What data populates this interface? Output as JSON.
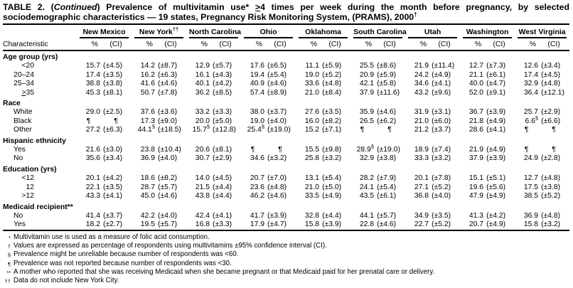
{
  "title": {
    "part1": "TABLE 2. (",
    "part2_italic": "Continued",
    "part3": ") Prevalence of multivitamin use* ",
    "part4_geq": ">",
    "part5": "4 times per week during the month before pregnancy, by selected",
    "line2": "sociodemographic characteristics — 19 states, Pregnancy Risk Monitoring System, (PRAMS), 2000",
    "line2_sup": "†"
  },
  "table": {
    "characteristic_label": "Characteristic",
    "subheaders": {
      "pct": "%",
      "ci": "(CI)"
    },
    "states": [
      {
        "name": "New Mexico",
        "sup": ""
      },
      {
        "name": "New York",
        "sup": "††"
      },
      {
        "name": "North Carolina",
        "sup": ""
      },
      {
        "name": "Ohio",
        "sup": ""
      },
      {
        "name": "Oklahoma",
        "sup": ""
      },
      {
        "name": "South Carolina",
        "sup": ""
      },
      {
        "name": "Utah",
        "sup": ""
      },
      {
        "name": "Washington",
        "sup": ""
      },
      {
        "name": "West Virginia",
        "sup": ""
      }
    ],
    "rows": [
      {
        "type": "section",
        "label": "Age group (yrs)"
      },
      {
        "type": "data",
        "label": "<20",
        "align": "num",
        "cells": [
          [
            "15.7",
            "(±4.5)"
          ],
          [
            "14.2",
            "(±8.7)"
          ],
          [
            "12.9",
            "(±5.7)"
          ],
          [
            "17.6",
            "(±6.5)"
          ],
          [
            "11.1",
            "(±5.9)"
          ],
          [
            "25.5",
            "(±8.6)"
          ],
          [
            "21.9",
            "(±11.4)"
          ],
          [
            "12.7",
            "(±7.3)"
          ],
          [
            "12.6",
            "(±3.4)"
          ]
        ]
      },
      {
        "type": "data",
        "label": "20–24",
        "align": "num",
        "cells": [
          [
            "17.4",
            "(±3.5)"
          ],
          [
            "16.2",
            "(±6.3)"
          ],
          [
            "16.1",
            "(±4.3)"
          ],
          [
            "19.4",
            "(±5.4)"
          ],
          [
            "19.0",
            "(±5.2)"
          ],
          [
            "20.9",
            "(±5.9)"
          ],
          [
            "24.2",
            "(±4.9)"
          ],
          [
            "21.1",
            "(±6.1)"
          ],
          [
            "17.4",
            "(±4.5)"
          ]
        ]
      },
      {
        "type": "data",
        "label": "25–34",
        "align": "num",
        "cells": [
          [
            "38.8",
            "(±3.8)"
          ],
          [
            "41.6",
            "(±4.6)"
          ],
          [
            "40.1",
            "(±4.2)"
          ],
          [
            "40.9",
            "(±4.6)"
          ],
          [
            "33.6",
            "(±4.8)"
          ],
          [
            "42.1",
            "(±5.8)"
          ],
          [
            "34.6",
            "(±4.1)"
          ],
          [
            "40.0",
            "(±4.7)"
          ],
          [
            "32.9",
            "(±4.8)"
          ]
        ]
      },
      {
        "type": "data",
        "label": ">35",
        "align": "num",
        "geq": true,
        "cells": [
          [
            "45.3",
            "(±8.1)"
          ],
          [
            "50.7",
            "(±7.8)"
          ],
          [
            "36.2",
            "(±8.5)"
          ],
          [
            "57.4",
            "(±8.9)"
          ],
          [
            "21.0",
            "(±8.4)"
          ],
          [
            "37.9",
            "(±11.6)"
          ],
          [
            "43.2",
            "(±9.6)"
          ],
          [
            "52.0",
            "(±9.1)"
          ],
          [
            "36.4",
            "(±12.1)"
          ]
        ]
      },
      {
        "type": "section",
        "label": "Race"
      },
      {
        "type": "data",
        "label": "White",
        "align": "word",
        "cells": [
          [
            "29.0",
            "(±2.5)"
          ],
          [
            "37.6",
            "(±3.6)"
          ],
          [
            "33.2",
            "(±3.3)"
          ],
          [
            "38.0",
            "(±3.7)"
          ],
          [
            "27.6",
            "(±3.5)"
          ],
          [
            "35.9",
            "(±4.6)"
          ],
          [
            "31.9",
            "(±3.1)"
          ],
          [
            "36.7",
            "(±3.9)"
          ],
          [
            "25.7",
            "(±2.9)"
          ]
        ]
      },
      {
        "type": "data",
        "label": "Black",
        "align": "word",
        "cells": [
          [
            "¶",
            "¶"
          ],
          [
            "17.3",
            "(±9.0)"
          ],
          [
            "20.0",
            "(±5.0)"
          ],
          [
            "19.0",
            "(±4.0)"
          ],
          [
            "16.0",
            "(±8.2)"
          ],
          [
            "26.5",
            "(±6.2)"
          ],
          [
            "21.0",
            "(±6.0)"
          ],
          [
            "21.8",
            "(±4.9)"
          ],
          [
            "6.6§",
            "(±6.6)"
          ]
        ]
      },
      {
        "type": "data",
        "label": "Other",
        "align": "word",
        "cells": [
          [
            "27.2",
            "(±6.3)"
          ],
          [
            "44.1§",
            "(±18.5)"
          ],
          [
            "15.7§",
            "(±12.8)"
          ],
          [
            "25.4§",
            "(±19.0)"
          ],
          [
            "15.2",
            "(±7.1)"
          ],
          [
            "¶",
            "¶"
          ],
          [
            "21.2",
            "(±3.7)"
          ],
          [
            "28.6",
            "(±4.1)"
          ],
          [
            "¶",
            "¶"
          ]
        ]
      },
      {
        "type": "section",
        "label": "Hispanic ethnicity"
      },
      {
        "type": "data",
        "label": "Yes",
        "align": "word",
        "cells": [
          [
            "21.6",
            "(±3.0)"
          ],
          [
            "23.8",
            "(±10.4)"
          ],
          [
            "20.6",
            "(±8.1)"
          ],
          [
            "¶",
            "¶"
          ],
          [
            "15.5",
            "(±9.8)"
          ],
          [
            "28.9§",
            "(±19.0)"
          ],
          [
            "18.9",
            "(±7.4)"
          ],
          [
            "21.9",
            "(±4.9)"
          ],
          [
            "¶",
            "¶"
          ]
        ]
      },
      {
        "type": "data",
        "label": "No",
        "align": "word",
        "cells": [
          [
            "35.6",
            "(±3.4)"
          ],
          [
            "36.9",
            "(±4.0)"
          ],
          [
            "30.7",
            "(±2.9)"
          ],
          [
            "34.6",
            "(±3.2)"
          ],
          [
            "25.8",
            "(±3.2)"
          ],
          [
            "32.9",
            "(±3.8)"
          ],
          [
            "33.3",
            "(±3.2)"
          ],
          [
            "37.9",
            "(±3.9)"
          ],
          [
            "24.9",
            "(±2.8)"
          ]
        ]
      },
      {
        "type": "section",
        "label": "Education (yrs)"
      },
      {
        "type": "data",
        "label": "<12",
        "align": "num",
        "cells": [
          [
            "20.1",
            "(±4.2)"
          ],
          [
            "18.6",
            "(±8.2)"
          ],
          [
            "14.0",
            "(±4.5)"
          ],
          [
            "20.7",
            "(±7.0)"
          ],
          [
            "13.1",
            "(±5.4)"
          ],
          [
            "28.2",
            "(±7.9)"
          ],
          [
            "20.1",
            "(±7.8)"
          ],
          [
            "15.1",
            "(±5.1)"
          ],
          [
            "12.7",
            "(±4.8)"
          ]
        ]
      },
      {
        "type": "data",
        "label": "12",
        "align": "num",
        "cells": [
          [
            "22.1",
            "(±3.5)"
          ],
          [
            "28.7",
            "(±5.7)"
          ],
          [
            "21.5",
            "(±4.4)"
          ],
          [
            "23.6",
            "(±4.8)"
          ],
          [
            "21.0",
            "(±5.0)"
          ],
          [
            "24.1",
            "(±5.4)"
          ],
          [
            "27.1",
            "(±5.2)"
          ],
          [
            "19.6",
            "(±5.6)"
          ],
          [
            "17.5",
            "(±3.8)"
          ]
        ]
      },
      {
        "type": "data",
        "label": ">12",
        "align": "num",
        "cells": [
          [
            "43.3",
            "(±4.1)"
          ],
          [
            "45.0",
            "(±4.6)"
          ],
          [
            "43.8",
            "(±4.4)"
          ],
          [
            "46.2",
            "(±4.6)"
          ],
          [
            "33.5",
            "(±4.9)"
          ],
          [
            "43.5",
            "(±6.1)"
          ],
          [
            "36.8",
            "(±4.0)"
          ],
          [
            "47.9",
            "(±4.9)"
          ],
          [
            "38.5",
            "(±5.2)"
          ]
        ]
      },
      {
        "type": "section",
        "label": "Medicaid recipient**"
      },
      {
        "type": "data",
        "label": "No",
        "align": "word",
        "cells": [
          [
            "41.4",
            "(±3.7)"
          ],
          [
            "42.2",
            "(±4.0)"
          ],
          [
            "42.4",
            "(±4.1)"
          ],
          [
            "41.7",
            "(±3.9)"
          ],
          [
            "32.8",
            "(±4.4)"
          ],
          [
            "44.1",
            "(±5.7)"
          ],
          [
            "34.9",
            "(±3.5)"
          ],
          [
            "41.3",
            "(±4.2)"
          ],
          [
            "36.9",
            "(±4.8)"
          ]
        ]
      },
      {
        "type": "data",
        "label": "Yes",
        "align": "word",
        "cells": [
          [
            "18.2",
            "(±2.7)"
          ],
          [
            "19.5",
            "(±5.7)"
          ],
          [
            "16.8",
            "(±3.3)"
          ],
          [
            "17.9",
            "(±4.7)"
          ],
          [
            "15.8",
            "(±3.9)"
          ],
          [
            "22.8",
            "(±4.6)"
          ],
          [
            "22.7",
            "(±5.2)"
          ],
          [
            "20.7",
            "(±4.9)"
          ],
          [
            "15.8",
            "(±3.2)"
          ]
        ]
      }
    ]
  },
  "footnotes": [
    {
      "marker": "*",
      "text": "Multivitamin use is used as a measure of folic acid consumption."
    },
    {
      "marker": "†",
      "text": "Values are expressed as percentage of respondents using multivitamins ±95% confidence interval (CI)."
    },
    {
      "marker": "§",
      "text": "Prevalence might be unreliable because number of respondents was <60."
    },
    {
      "marker": "¶",
      "text": "Prevalence was not reported because number of respondents was <30."
    },
    {
      "marker": "**",
      "text": "A mother who reported that she was receiving Medicaid when she became pregnant or that Medicaid paid for her prenatal care or delivery."
    },
    {
      "marker": "††",
      "text": "Data do not include New York City."
    }
  ],
  "colors": {
    "text": "#000000",
    "rule": "#000000",
    "background": "#ffffff"
  }
}
